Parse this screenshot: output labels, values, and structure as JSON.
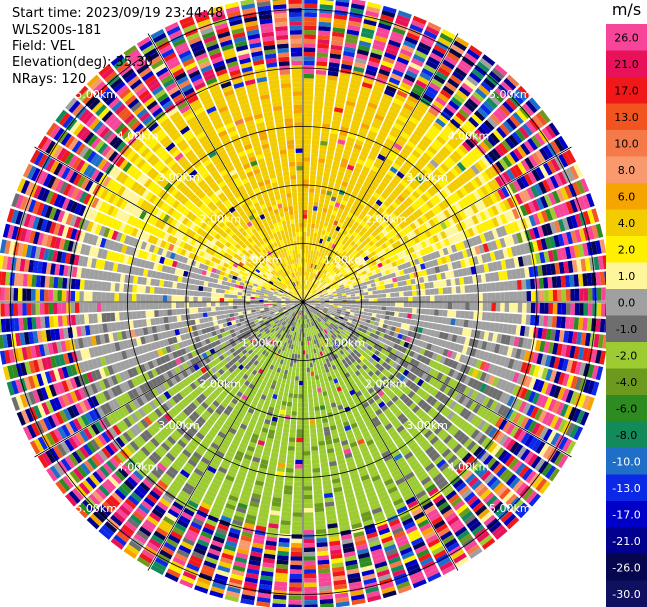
{
  "header": {
    "start_time": "Start time: 2023/09/19 23:44:48",
    "instrument": "WLS200s-181",
    "field": "Field: VEL",
    "elevation": "Elevation(deg): 35.30",
    "nrays": "NRays: 120"
  },
  "colorbar": {
    "title": "m/s",
    "bins": [
      {
        "label": "26.0",
        "color": "#f7459a"
      },
      {
        "label": "21.0",
        "color": "#e8125a"
      },
      {
        "label": "17.0",
        "color": "#f01818"
      },
      {
        "label": "13.0",
        "color": "#f2541f"
      },
      {
        "label": "10.0",
        "color": "#f47a4a"
      },
      {
        "label": "8.0",
        "color": "#f89a6e"
      },
      {
        "label": "6.0",
        "color": "#f6a400"
      },
      {
        "label": "4.0",
        "color": "#f3cc00"
      },
      {
        "label": "2.0",
        "color": "#fff000"
      },
      {
        "label": "1.0",
        "color": "#fff59a"
      },
      {
        "label": "0.0",
        "color": "#a0a0a0"
      },
      {
        "label": "-1.0",
        "color": "#6e6e6e"
      },
      {
        "label": "-2.0",
        "color": "#9ccc32"
      },
      {
        "label": "-4.0",
        "color": "#6b9a1f"
      },
      {
        "label": "-6.0",
        "color": "#2e8b22"
      },
      {
        "label": "-8.0",
        "color": "#138a5a"
      },
      {
        "label": "-10.0",
        "color": "#1f6fc8"
      },
      {
        "label": "-13.0",
        "color": "#0a28e6"
      },
      {
        "label": "-17.0",
        "color": "#0000c8"
      },
      {
        "label": "-21.0",
        "color": "#00008c"
      },
      {
        "label": "-26.0",
        "color": "#06064f"
      },
      {
        "label": "-30.0",
        "color": "#101060"
      }
    ],
    "tick_labels": [
      "26.0",
      "21.0",
      "17.0",
      "13.0",
      "10.0",
      "8.0",
      "6.0",
      "4.0",
      "2.0",
      "1.0",
      "0.0",
      "-1.0",
      "-2.0",
      "-4.0",
      "-6.0",
      "-8.0",
      "-10.0",
      "-13.0",
      "-17.0",
      "-21.0",
      "-26.0",
      "-30.0"
    ]
  },
  "chart_data": {
    "type": "heatmap",
    "projection": "polar PPI",
    "field": "VEL",
    "units": "m/s",
    "nrays": 120,
    "elevation_deg": 35.3,
    "range_rings_km": [
      1.0,
      2.0,
      3.0,
      4.0,
      5.0
    ],
    "range_ring_labels": [
      "1.00km",
      "2.00km",
      "3.00km",
      "4.00km",
      "5.00km"
    ],
    "spoke_angles_deg": [
      0,
      30,
      60,
      90,
      120,
      150,
      180,
      210,
      240,
      270,
      300,
      330
    ],
    "max_range_km": 5.3,
    "pattern": {
      "north_sector": "positive velocities ~1 to 4 m/s (yellow / orange)",
      "south_sector": "negative velocities ~-2 to -6 m/s (light to dark green)",
      "east_west": "near zero (gray)",
      "outer_rings_beyond_3.7km": "noise: full color range"
    }
  }
}
